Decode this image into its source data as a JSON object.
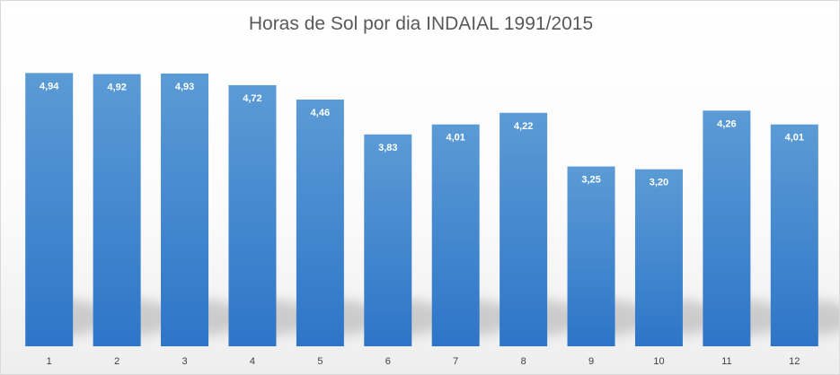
{
  "chart_data": {
    "type": "bar",
    "title": "Horas de Sol por dia INDAIAL 1991/2015",
    "categories": [
      "1",
      "2",
      "3",
      "4",
      "5",
      "6",
      "7",
      "8",
      "9",
      "10",
      "11",
      "12"
    ],
    "values": [
      4.94,
      4.92,
      4.93,
      4.72,
      4.46,
      3.83,
      4.01,
      4.22,
      3.25,
      3.2,
      4.26,
      4.01
    ],
    "data_labels": [
      "4,94",
      "4,92",
      "4,93",
      "4,72",
      "4,46",
      "3,83",
      "4,01",
      "4,22",
      "3,25",
      "3,20",
      "4,26",
      "4,01"
    ],
    "xlabel": "",
    "ylabel": "",
    "ylim": [
      0,
      5.4
    ],
    "grid": false,
    "legend": "none",
    "colors": {
      "bar_top": "#5b9bd5",
      "bar_bottom": "#2e75c8",
      "label": "#ffffff",
      "tick": "#404040",
      "title": "#595959"
    }
  }
}
